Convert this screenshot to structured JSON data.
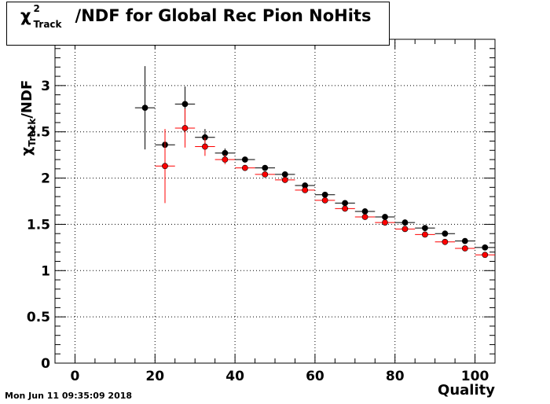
{
  "title": {
    "chi": "χ",
    "sup": "2",
    "sub": "Track",
    "rest": "/NDF for Global Rec Pion NoHits"
  },
  "date_stamp": "Mon Jun 11 09:35:09 2018",
  "chart_data": {
    "type": "scatter",
    "title": "χ²_Track/NDF for Global Rec Pion NoHits",
    "xlabel": "Quality",
    "ylabel": "χ²_Track/NDF",
    "xlim": [
      -5,
      105
    ],
    "ylim": [
      0,
      3.5
    ],
    "x_ticks": [
      0,
      20,
      40,
      60,
      80,
      100
    ],
    "x_tick_labels": [
      "0",
      "20",
      "40",
      "60",
      "80",
      "100"
    ],
    "y_ticks": [
      0,
      0.5,
      1,
      1.5,
      2,
      2.5,
      3
    ],
    "y_tick_labels": [
      "0",
      "0.5",
      "1",
      "1.5",
      "2",
      "2.5",
      "3"
    ],
    "grid": true,
    "series": [
      {
        "color": "#000000",
        "x": [
          17.5,
          22.5,
          27.5,
          32.5,
          37.5,
          42.5,
          47.5,
          52.5,
          57.5,
          62.5,
          67.5,
          72.5,
          77.5,
          82.5,
          87.5,
          92.5,
          97.5,
          102.5
        ],
        "y": [
          2.76,
          2.36,
          2.8,
          2.44,
          2.27,
          2.2,
          2.11,
          2.04,
          1.92,
          1.82,
          1.73,
          1.64,
          1.58,
          1.52,
          1.46,
          1.4,
          1.32,
          1.25
        ],
        "yerr": [
          0.45,
          0.13,
          0.19,
          0.09,
          0.05,
          0.03,
          0.02,
          0.02,
          0.02,
          0.02,
          0.01,
          0.01,
          0.01,
          0.01,
          0.01,
          0.01,
          0.01,
          0.01
        ],
        "xerr": 2.5
      },
      {
        "color": "#ff0000",
        "x": [
          22.5,
          27.5,
          32.5,
          37.5,
          42.5,
          47.5,
          52.5,
          57.5,
          62.5,
          67.5,
          72.5,
          77.5,
          82.5,
          87.5,
          92.5,
          97.5,
          102.5
        ],
        "y": [
          2.13,
          2.54,
          2.34,
          2.2,
          2.11,
          2.04,
          1.98,
          1.87,
          1.76,
          1.67,
          1.58,
          1.52,
          1.45,
          1.39,
          1.31,
          1.24,
          1.17
        ],
        "yerr": [
          0.4,
          0.21,
          0.1,
          0.05,
          0.03,
          0.02,
          0.02,
          0.02,
          0.02,
          0.01,
          0.01,
          0.01,
          0.01,
          0.01,
          0.01,
          0.01,
          0.01
        ],
        "xerr": 2.5
      }
    ]
  }
}
